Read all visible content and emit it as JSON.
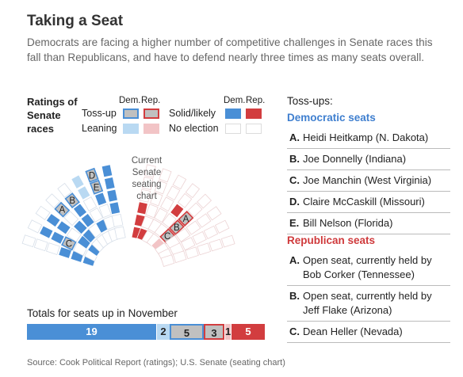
{
  "title": "Taking a Seat",
  "subtitle": "Democrats are facing a higher number of competitive challenges in Senate races this fall than Republicans, and have to defend nearly three times as many seats overall.",
  "legend": {
    "title": "Ratings of Senate races",
    "dem_header": "Dem.",
    "rep_header": "Rep.",
    "dem_header2": "Dem.",
    "rep_header2": "Rep.",
    "tossup": "Toss-up",
    "leaning": "Leaning",
    "solid_likely": "Solid/likely",
    "no_election": "No election"
  },
  "seating_label": "Current Senate seating chart",
  "tossups": {
    "heading": "Toss-ups:",
    "democratic_heading": "Democratic seats",
    "democratic": [
      {
        "letter": "A.",
        "text": "Heidi Heitkamp (N. Dakota)"
      },
      {
        "letter": "B.",
        "text": "Joe Donnelly (Indiana)"
      },
      {
        "letter": "C.",
        "text": "Joe Manchin (West Virginia)"
      },
      {
        "letter": "D.",
        "text": "Claire McCaskill (Missouri)"
      },
      {
        "letter": "E.",
        "text": "Bill Nelson (Florida)"
      }
    ],
    "republican_heading": "Republican seats",
    "republican": [
      {
        "letter": "A.",
        "text": "Open seat, currently held by Bob Corker (Tennessee)"
      },
      {
        "letter": "B.",
        "text": "Open seat, currently held by Jeff Flake (Arizona)"
      },
      {
        "letter": "C.",
        "text": "Dean Heller (Nevada)"
      }
    ]
  },
  "totals_title": "Totals for seats up in November",
  "chart_data": {
    "type": "bar",
    "stacked": true,
    "title": "Totals for seats up in November",
    "categories": [
      "Dem. solid/likely",
      "Dem. leaning",
      "Dem. toss-up",
      "Rep. toss-up",
      "Rep. leaning",
      "Rep. solid/likely"
    ],
    "values": [
      19,
      2,
      5,
      3,
      1,
      5
    ],
    "labels": [
      "19",
      "2",
      "5",
      "3",
      "1",
      "5"
    ],
    "colors": [
      "#4a8fd6",
      "#b9d9f2",
      "#c0c0c0",
      "#c0c0c0",
      "#f2c4c6",
      "#d23d3f"
    ],
    "border_colors": [
      "none",
      "none",
      "#4a8fd6",
      "#d23d3f",
      "none",
      "none"
    ]
  },
  "seating_chart": {
    "legend": {
      "dem_solid": "#4a8fd6",
      "dem_leaning": "#b9d9f2",
      "rep_solid": "#d23d3f",
      "rep_leaning": "#f2c4c6",
      "tossup_fill": "#c0c0c0",
      "no_election": "#ffffff"
    },
    "toss_up_markers": {
      "democratic": [
        "A",
        "B",
        "C",
        "D",
        "E"
      ],
      "republican": [
        "A",
        "B",
        "C"
      ]
    }
  },
  "colors": {
    "dem_heading": "#3f7fcf",
    "rep_heading": "#cf3a3c",
    "dem_solid": "#4a8fd6",
    "dem_leaning": "#b9d9f2",
    "rep_solid": "#d23d3f",
    "rep_leaning": "#f2c4c6",
    "tossup": "#c0c0c0"
  },
  "source": "Source: Cook Political Report (ratings); U.S. Senate (seating chart)"
}
